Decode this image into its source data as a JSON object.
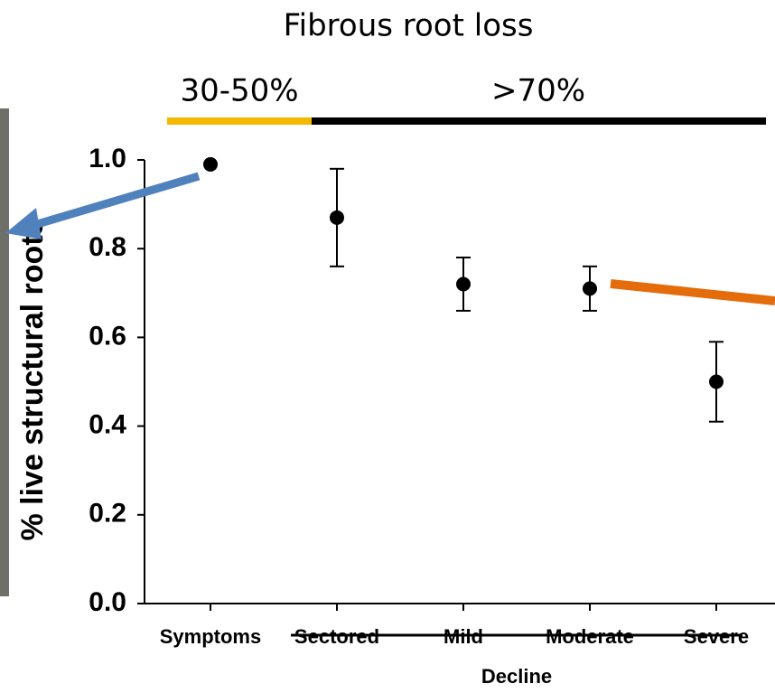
{
  "chart_data": {
    "type": "point",
    "title": "Fibrous root loss",
    "root_loss_segments": [
      {
        "label": "30-50%",
        "color": "#f5b800"
      },
      {
        "label": ">70%",
        "color": "#000000"
      }
    ],
    "y_label": "% live structural roots",
    "categories": [
      "Symptoms",
      "Sectored",
      "Mild",
      "Moderate",
      "Severe"
    ],
    "group_label": "Decline",
    "values": [
      0.99,
      0.87,
      0.72,
      0.71,
      0.5
    ],
    "errors": [
      null,
      0.11,
      0.06,
      0.05,
      0.09
    ],
    "color": "#000000",
    "ylim": [
      0,
      1
    ],
    "yticks": [
      {
        "value": 0,
        "label": "0.0"
      },
      0.2,
      0.4,
      0.6,
      0.8,
      {
        "value": 1,
        "label": "1.0"
      }
    ]
  }
}
